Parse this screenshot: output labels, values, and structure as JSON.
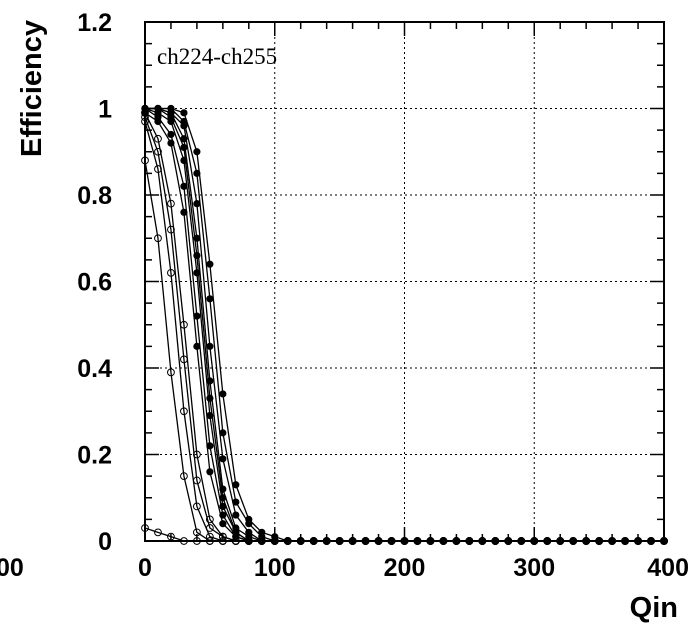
{
  "chart_data": {
    "type": "line",
    "title": "",
    "xlabel": "Qin",
    "ylabel": "Efficiency",
    "annotation": "ch224-ch255",
    "xlim": [
      0,
      400
    ],
    "ylim": [
      0,
      1.2
    ],
    "xticks": [
      0,
      100,
      200,
      300,
      400
    ],
    "xtick_labels": [
      "0",
      "100",
      "200",
      "300",
      "400"
    ],
    "xtick_edge_fragment": "00",
    "yticks": [
      0,
      0.2,
      0.4,
      0.6,
      0.8,
      1,
      1.2
    ],
    "ytick_labels": [
      "0",
      "0.2",
      "0.4",
      "0.6",
      "0.8",
      "1",
      "1.2"
    ],
    "grid": true,
    "legend": "none",
    "x": [
      0,
      10,
      20,
      30,
      40,
      50,
      60,
      70,
      80,
      90,
      100,
      110,
      120,
      130,
      140,
      150,
      160,
      170,
      180,
      190,
      200,
      210,
      220,
      230,
      240,
      250,
      260,
      270,
      280,
      290,
      300,
      310,
      320,
      330,
      340,
      350,
      360,
      370,
      380,
      390,
      400
    ],
    "series": [
      {
        "marker": "filled",
        "values": [
          1.0,
          1.0,
          0.99,
          0.93,
          0.7,
          0.37,
          0.12,
          0.03,
          0.01,
          0,
          0,
          0,
          0,
          0,
          0,
          0,
          0,
          0,
          0,
          0,
          0,
          0,
          0,
          0,
          0,
          0,
          0,
          0,
          0,
          0,
          0,
          0,
          0,
          0,
          0,
          0,
          0,
          0,
          0,
          0,
          0
        ]
      },
      {
        "marker": "filled",
        "values": [
          1.0,
          1.0,
          0.99,
          0.96,
          0.78,
          0.45,
          0.19,
          0.06,
          0.02,
          0,
          0,
          0,
          0,
          0,
          0,
          0,
          0,
          0,
          0,
          0,
          0,
          0,
          0,
          0,
          0,
          0,
          0,
          0,
          0,
          0,
          0,
          0,
          0,
          0,
          0,
          0,
          0,
          0,
          0,
          0,
          0
        ]
      },
      {
        "marker": "filled",
        "values": [
          1.0,
          1.0,
          1.0,
          0.97,
          0.85,
          0.56,
          0.25,
          0.09,
          0.04,
          0.01,
          0,
          0,
          0,
          0,
          0,
          0,
          0,
          0,
          0,
          0,
          0,
          0,
          0,
          0,
          0,
          0,
          0,
          0,
          0,
          0,
          0,
          0,
          0,
          0,
          0,
          0,
          0,
          0,
          0,
          0,
          0
        ]
      },
      {
        "marker": "filled",
        "values": [
          1.0,
          1.0,
          1.0,
          0.99,
          0.9,
          0.64,
          0.34,
          0.13,
          0.05,
          0.02,
          0.01,
          0,
          0,
          0,
          0,
          0,
          0,
          0,
          0,
          0,
          0,
          0,
          0,
          0,
          0,
          0,
          0,
          0,
          0,
          0,
          0,
          0,
          0,
          0,
          0,
          0,
          0,
          0,
          0,
          0,
          0
        ]
      },
      {
        "marker": "filled",
        "values": [
          1.0,
          0.99,
          0.97,
          0.88,
          0.62,
          0.29,
          0.08,
          0.02,
          0,
          0,
          0,
          0,
          0,
          0,
          0,
          0,
          0,
          0,
          0,
          0,
          0,
          0,
          0,
          0,
          0,
          0,
          0,
          0,
          0,
          0,
          0,
          0,
          0,
          0,
          0,
          0,
          0,
          0,
          0,
          0,
          0
        ]
      },
      {
        "marker": "filled",
        "values": [
          1.0,
          0.98,
          0.94,
          0.82,
          0.52,
          0.22,
          0.06,
          0.01,
          0,
          0,
          0,
          0,
          0,
          0,
          0,
          0,
          0,
          0,
          0,
          0,
          0,
          0,
          0,
          0,
          0,
          0,
          0,
          0,
          0,
          0,
          0,
          0,
          0,
          0,
          0,
          0,
          0,
          0,
          0,
          0,
          0
        ]
      },
      {
        "marker": "filled",
        "values": [
          0.99,
          0.97,
          0.92,
          0.76,
          0.45,
          0.16,
          0.04,
          0.01,
          0,
          0,
          0,
          0,
          0,
          0,
          0,
          0,
          0,
          0,
          0,
          0,
          0,
          0,
          0,
          0,
          0,
          0,
          0,
          0,
          0,
          0,
          0,
          0,
          0,
          0,
          0,
          0,
          0,
          0,
          0,
          0,
          0
        ]
      },
      {
        "marker": "filled",
        "values": [
          1.0,
          1.0,
          0.98,
          0.91,
          0.66,
          0.33,
          0.1,
          0.02,
          0,
          0,
          0,
          0,
          0,
          0,
          0,
          0,
          0,
          0,
          0,
          0,
          0,
          0,
          0,
          0,
          0,
          0,
          0,
          0,
          0,
          0,
          0,
          0,
          0,
          0,
          0,
          0,
          0,
          0,
          0,
          0,
          0
        ]
      },
      {
        "marker": "open",
        "values": [
          0.98,
          0.9,
          0.72,
          0.42,
          0.14,
          0.03,
          0.01,
          0,
          0,
          0,
          0,
          0,
          0,
          0,
          0,
          0,
          0,
          0,
          0,
          0,
          0,
          0,
          0,
          0,
          0,
          0,
          0,
          0,
          0,
          0,
          0,
          0,
          0,
          0,
          0,
          0,
          0,
          0,
          0,
          0,
          0
        ]
      },
      {
        "marker": "open",
        "values": [
          0.97,
          0.86,
          0.62,
          0.3,
          0.08,
          0.01,
          0,
          0,
          0,
          0,
          0,
          0,
          0,
          0,
          0,
          0,
          0,
          0,
          0,
          0,
          0,
          0,
          0,
          0,
          0,
          0,
          0,
          0,
          0,
          0,
          0,
          0,
          0,
          0,
          0,
          0,
          0,
          0,
          0,
          0,
          0
        ]
      },
      {
        "marker": "open",
        "values": [
          0.88,
          0.7,
          0.39,
          0.15,
          0.02,
          0,
          0,
          0,
          0,
          0,
          0,
          0,
          0,
          0,
          0,
          0,
          0,
          0,
          0,
          0,
          0,
          0,
          0,
          0,
          0,
          0,
          0,
          0,
          0,
          0,
          0,
          0,
          0,
          0,
          0,
          0,
          0,
          0,
          0,
          0,
          0
        ]
      },
      {
        "marker": "open",
        "values": [
          0.99,
          0.93,
          0.78,
          0.5,
          0.2,
          0.05,
          0.01,
          0,
          0,
          0,
          0,
          0,
          0,
          0,
          0,
          0,
          0,
          0,
          0,
          0,
          0,
          0,
          0,
          0,
          0,
          0,
          0,
          0,
          0,
          0,
          0,
          0,
          0,
          0,
          0,
          0,
          0,
          0,
          0,
          0,
          0
        ]
      },
      {
        "marker": "open",
        "values": [
          0.03,
          0.02,
          0.01,
          0,
          0,
          0,
          0,
          0,
          0,
          0,
          0,
          0,
          0,
          0,
          0,
          0,
          0,
          0,
          0,
          0,
          0,
          0,
          0,
          0,
          0,
          0,
          0,
          0,
          0,
          0,
          0,
          0,
          0,
          0,
          0,
          0,
          0,
          0,
          0,
          0,
          0
        ]
      }
    ]
  }
}
